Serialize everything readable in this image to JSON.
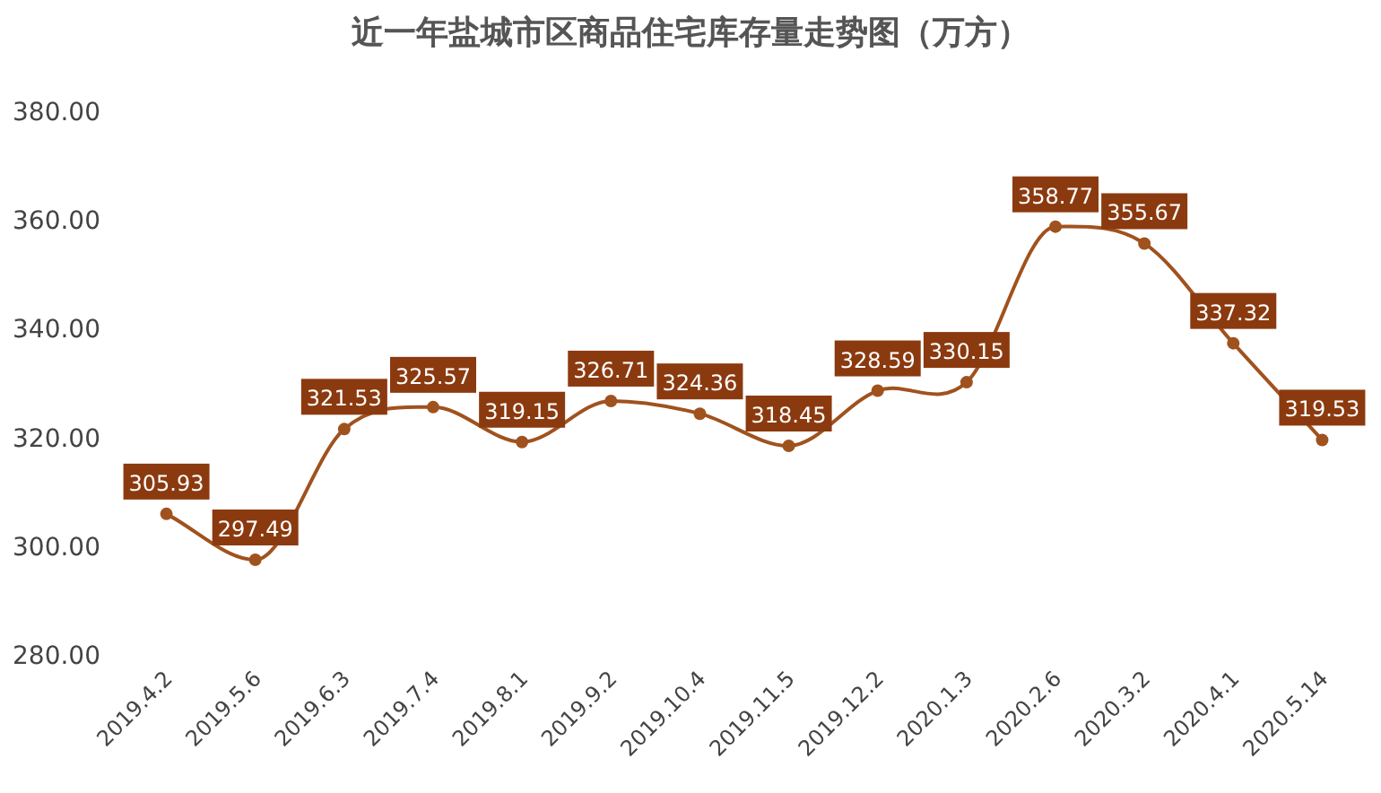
{
  "chart_data": {
    "type": "line",
    "title": "近一年盐城市区商品住宅库存量走势图（万方）",
    "categories": [
      "2019.4.2",
      "2019.5.6",
      "2019.6.3",
      "2019.7.4",
      "2019.8.1",
      "2019.9.2",
      "2019.10.4",
      "2019.11.5",
      "2019.12.2",
      "2020.1.3",
      "2020.2.6",
      "2020.3.2",
      "2020.4.1",
      "2020.5.14"
    ],
    "values": [
      305.93,
      297.49,
      321.53,
      325.57,
      319.15,
      326.71,
      324.36,
      318.45,
      328.59,
      330.15,
      358.77,
      355.67,
      337.32,
      319.53
    ],
    "color": "#a0521e",
    "marker": "circle",
    "data_labels": true,
    "ylim": [
      280,
      380
    ],
    "yticks": [
      {
        "value": 280,
        "label": "280.00"
      },
      {
        "value": 300,
        "label": "300.00"
      },
      {
        "value": 320,
        "label": "320.00"
      },
      {
        "value": 340,
        "label": "340.00"
      },
      {
        "value": 360,
        "label": "360.00"
      },
      {
        "value": 380,
        "label": "380.00"
      }
    ]
  }
}
